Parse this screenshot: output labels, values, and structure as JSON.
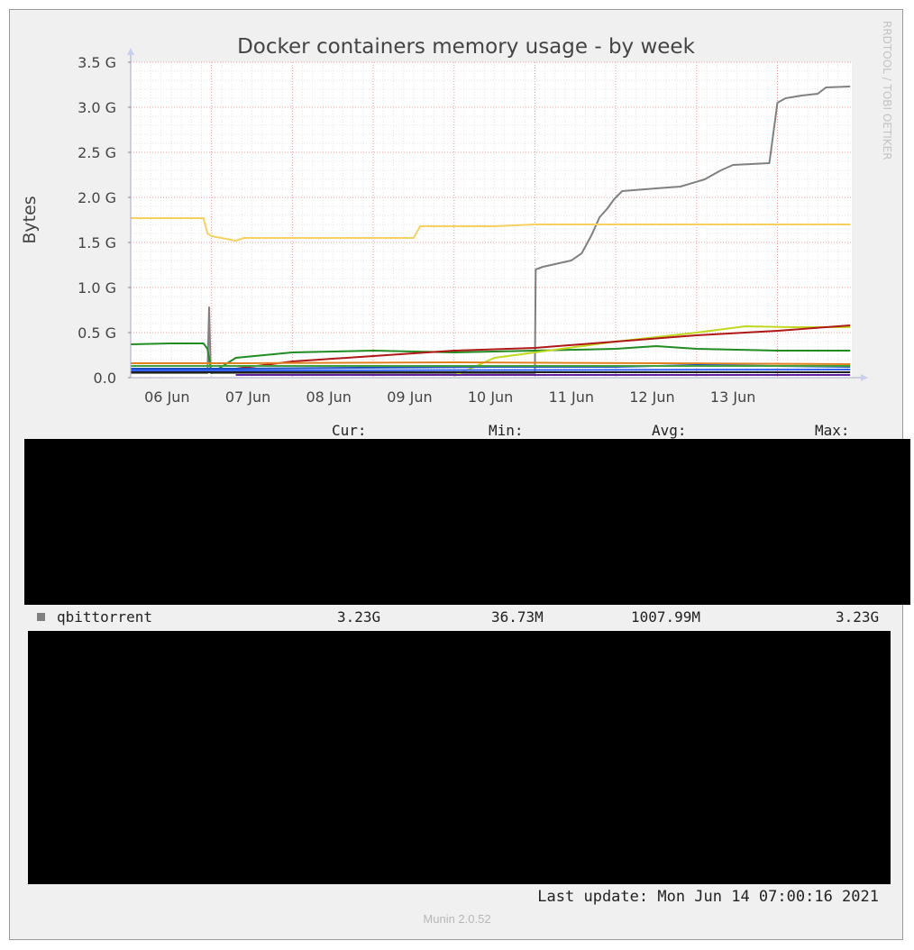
{
  "chart_data": {
    "type": "line",
    "title": "Docker containers memory usage - by week",
    "ylabel": "Bytes",
    "watermark": "RRDTOOL / TOBI OETIKER",
    "ylim": [
      0,
      3.5
    ],
    "y_unit": "G",
    "y_ticks": [
      "0.0",
      "0.5 G",
      "1.0 G",
      "1.5 G",
      "2.0 G",
      "2.5 G",
      "3.0 G",
      "3.5 G"
    ],
    "x_range_days": [
      "05 Jun",
      "14 Jun 07:00"
    ],
    "x_ticks": [
      "06 Jun",
      "07 Jun",
      "08 Jun",
      "09 Jun",
      "10 Jun",
      "11 Jun",
      "12 Jun",
      "13 Jun"
    ],
    "grid": true,
    "series": [
      {
        "name": "qbittorrent",
        "color": "#808080",
        "points": [
          [
            0.0,
            0.05
          ],
          [
            0.95,
            0.05
          ],
          [
            0.97,
            0.78
          ],
          [
            0.99,
            0.05
          ],
          [
            1.3,
            0.05
          ],
          [
            5.0,
            0.04
          ],
          [
            5.01,
            1.2
          ],
          [
            5.1,
            1.23
          ],
          [
            5.2,
            1.25
          ],
          [
            5.45,
            1.3
          ],
          [
            5.58,
            1.38
          ],
          [
            5.7,
            1.58
          ],
          [
            5.8,
            1.78
          ],
          [
            5.9,
            1.88
          ],
          [
            5.98,
            1.98
          ],
          [
            6.08,
            2.07
          ],
          [
            6.5,
            2.1
          ],
          [
            6.8,
            2.12
          ],
          [
            7.1,
            2.2
          ],
          [
            7.3,
            2.3
          ],
          [
            7.45,
            2.36
          ],
          [
            7.9,
            2.38
          ],
          [
            8.0,
            3.05
          ],
          [
            8.1,
            3.1
          ],
          [
            8.3,
            3.13
          ],
          [
            8.5,
            3.15
          ],
          [
            8.6,
            3.22
          ],
          [
            8.9,
            3.23
          ]
        ]
      },
      {
        "color": "#f8d060",
        "points": [
          [
            0.0,
            1.77
          ],
          [
            0.9,
            1.77
          ],
          [
            0.95,
            1.6
          ],
          [
            1.0,
            1.57
          ],
          [
            1.3,
            1.52
          ],
          [
            1.4,
            1.55
          ],
          [
            3.5,
            1.55
          ],
          [
            3.58,
            1.68
          ],
          [
            4.5,
            1.68
          ],
          [
            5.0,
            1.7
          ],
          [
            8.9,
            1.7
          ]
        ]
      },
      {
        "color": "#228b22",
        "points": [
          [
            0.0,
            0.37
          ],
          [
            0.5,
            0.38
          ],
          [
            0.9,
            0.38
          ],
          [
            0.95,
            0.32
          ],
          [
            1.0,
            0.05
          ],
          [
            1.3,
            0.22
          ],
          [
            2.0,
            0.28
          ],
          [
            3.0,
            0.3
          ],
          [
            4.0,
            0.28
          ],
          [
            5.0,
            0.3
          ],
          [
            6.0,
            0.32
          ],
          [
            6.5,
            0.35
          ],
          [
            7.0,
            0.32
          ],
          [
            8.0,
            0.3
          ],
          [
            8.9,
            0.3
          ]
        ]
      },
      {
        "color": "#c0d820",
        "points": [
          [
            4.0,
            0.02
          ],
          [
            4.5,
            0.22
          ],
          [
            5.0,
            0.28
          ],
          [
            6.0,
            0.4
          ],
          [
            7.0,
            0.5
          ],
          [
            7.6,
            0.57
          ],
          [
            8.2,
            0.56
          ],
          [
            8.9,
            0.56
          ]
        ]
      },
      {
        "color": "#b01818",
        "points": [
          [
            1.3,
            0.1
          ],
          [
            2.0,
            0.18
          ],
          [
            3.0,
            0.24
          ],
          [
            4.0,
            0.3
          ],
          [
            5.0,
            0.33
          ],
          [
            6.0,
            0.4
          ],
          [
            7.0,
            0.47
          ],
          [
            8.0,
            0.52
          ],
          [
            8.9,
            0.58
          ]
        ]
      },
      {
        "color": "#e08020",
        "points": [
          [
            0.0,
            0.16
          ],
          [
            0.95,
            0.16
          ],
          [
            1.3,
            0.16
          ],
          [
            4.0,
            0.17
          ],
          [
            8.9,
            0.15
          ]
        ]
      },
      {
        "color": "#1c50c0",
        "points": [
          [
            0.0,
            0.1
          ],
          [
            0.95,
            0.1
          ],
          [
            1.3,
            0.1
          ],
          [
            4.5,
            0.12
          ],
          [
            6.0,
            0.12
          ],
          [
            7.0,
            0.14
          ],
          [
            8.9,
            0.12
          ]
        ]
      },
      {
        "color": "#202020",
        "points": [
          [
            0.0,
            0.06
          ],
          [
            0.95,
            0.06
          ],
          [
            1.3,
            0.06
          ],
          [
            8.9,
            0.06
          ]
        ]
      },
      {
        "color": "#40a040",
        "points": [
          [
            0.0,
            0.13
          ],
          [
            0.95,
            0.13
          ],
          [
            1.3,
            0.13
          ],
          [
            8.9,
            0.13
          ]
        ]
      },
      {
        "color": "#6020a0",
        "points": [
          [
            1.3,
            0.03
          ],
          [
            3.0,
            0.03
          ],
          [
            8.9,
            0.03
          ]
        ]
      },
      {
        "color": "#3060ff",
        "points": [
          [
            0.0,
            0.08
          ],
          [
            0.95,
            0.08
          ],
          [
            1.3,
            0.08
          ],
          [
            8.9,
            0.09
          ]
        ]
      }
    ]
  },
  "legend": {
    "headers": {
      "cur": "Cur:",
      "min": "Min:",
      "avg": "Avg:",
      "max": "Max:"
    },
    "rows": [
      {
        "name": "qbittorrent",
        "cur": "3.23G",
        "min": "36.73M",
        "avg": "1007.99M",
        "max": "3.23G",
        "color": "#808080"
      }
    ]
  },
  "footer": {
    "last_update": "Last update: Mon Jun 14 07:00:16 2021",
    "version": "Munin 2.0.52"
  }
}
